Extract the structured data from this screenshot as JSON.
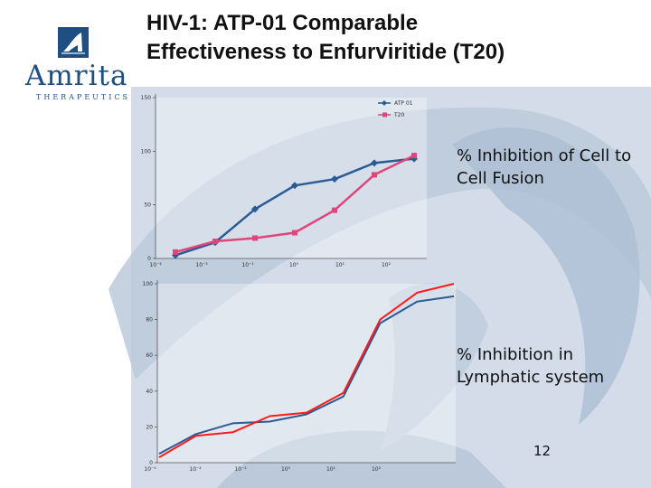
{
  "slide": {
    "title_line1": "HIV-1:  ATP-01 Comparable",
    "title_line2": "Effectiveness to Enfurviritide (T20)",
    "caption_top": "% Inhibition of Cell to Cell Fusion",
    "caption_bottom": "% Inhibition in Lymphatic system",
    "page_number": "12"
  },
  "logo": {
    "word": "Amrita",
    "sub": "THERAPEUTICS",
    "icon": "amrita-a-logo-icon",
    "color": "#1f4f82"
  },
  "chart_data": [
    {
      "type": "line",
      "title": "",
      "xlabel": "",
      "ylabel": "",
      "x_scale": "log",
      "ylim": [
        0,
        150
      ],
      "y_ticks": [
        "0",
        "50",
        "100",
        "150"
      ],
      "x_tick_labels": [
        "10⁻⁴",
        "10⁻³",
        "10⁻¹",
        "10⁰",
        "10¹",
        "10²"
      ],
      "legend_position": "top-right",
      "categories": [
        "p1",
        "p2",
        "p3",
        "p4",
        "p5",
        "p6",
        "p7"
      ],
      "series": [
        {
          "name": "ATP 01",
          "color": "#2a5b93",
          "marker": "diamond",
          "values": [
            3,
            15,
            46,
            68,
            74,
            89,
            93
          ]
        },
        {
          "name": "T20",
          "color": "#e0457b",
          "marker": "square",
          "values": [
            6,
            16,
            19,
            24,
            45,
            78,
            96
          ]
        }
      ]
    },
    {
      "type": "line",
      "title": "",
      "xlabel": "",
      "ylabel": "",
      "x_scale": "log",
      "ylim": [
        0,
        100
      ],
      "y_ticks": [
        "0",
        "20",
        "40",
        "60",
        "80",
        "100"
      ],
      "x_tick_labels": [
        "10⁻⁵",
        "10⁻⁴",
        "10⁻²",
        "10⁰",
        "10¹",
        "10²"
      ],
      "categories": [
        "p1",
        "p2",
        "p3",
        "p4",
        "p5",
        "p6",
        "p7",
        "p8",
        "p9"
      ],
      "series": [
        {
          "color": "#2a5b93",
          "values": [
            5,
            16,
            22,
            23,
            27,
            37,
            78,
            90,
            93
          ]
        },
        {
          "color": "#ff1a1a",
          "values": [
            3,
            15,
            17,
            26,
            28,
            39,
            80,
            95,
            100
          ]
        }
      ]
    }
  ]
}
